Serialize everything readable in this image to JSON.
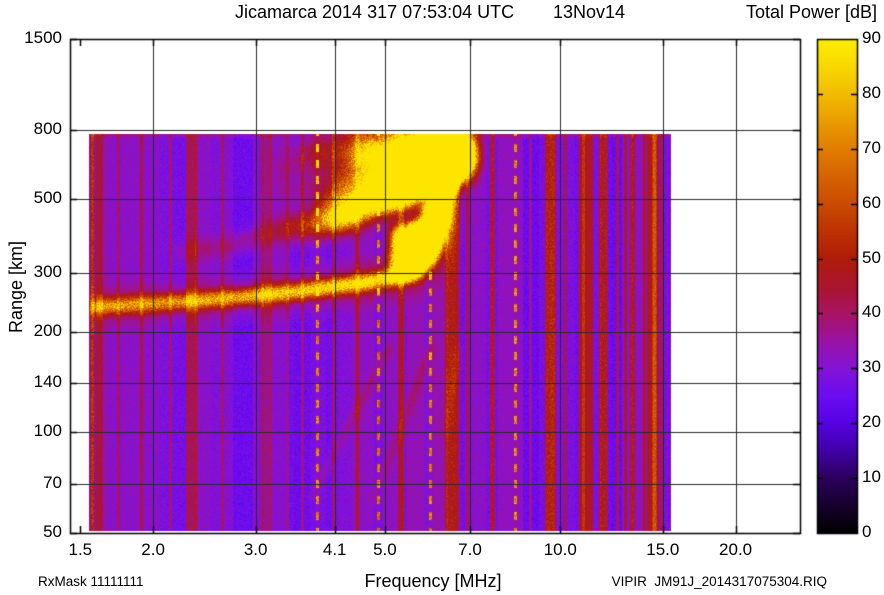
{
  "header": {
    "title": "Jicamarca 2014 317 07:53:04 UTC",
    "date": "13Nov14"
  },
  "footer": {
    "left": "RxMask 11111111",
    "center": "Frequency [MHz]",
    "right": "VIPIR  JM91J_2014317075304.RIQ"
  },
  "chart_data": {
    "type": "heatmap",
    "title": "Jicamarca 2014 317 07:53:04 UTC  13Nov14",
    "xlabel": "Frequency [MHz]",
    "ylabel": "Range [km]",
    "x_scale": "log",
    "y_scale": "log",
    "xlim": [
      1.44,
      25.8
    ],
    "ylim": [
      50,
      1500
    ],
    "x_ticks": [
      1.5,
      2.0,
      3.0,
      4.1,
      5.0,
      7.0,
      10.0,
      15.0,
      20.0
    ],
    "x_tick_labels": [
      "1.5",
      "2.0",
      "3.0",
      "4.1",
      "5.0",
      "7.0",
      "10.0",
      "15.0",
      "20.0"
    ],
    "x_grid": [
      2.0,
      3.0,
      4.1,
      5.0,
      7.0,
      10.0,
      15.0,
      20.0
    ],
    "y_ticks": [
      1500,
      800,
      500,
      300,
      200,
      140,
      100,
      70,
      50
    ],
    "y_tick_labels": [
      "1500",
      "800",
      "500",
      "300",
      "200",
      "140",
      "100",
      "70",
      "50"
    ],
    "y_grid": [
      800,
      500,
      300,
      200,
      140,
      100,
      70
    ],
    "grid": true,
    "grid_color": "#2a2a2a",
    "colorbar": {
      "title": "Total Power [dB]",
      "min": 0,
      "max": 90,
      "ticks": [
        0,
        10,
        20,
        30,
        40,
        50,
        60,
        70,
        80,
        90
      ],
      "tick_labels": [
        "0",
        "10",
        "20",
        "30",
        "40",
        "50",
        "60",
        "70",
        "80",
        "90"
      ],
      "position": "right",
      "palette": [
        {
          "v": 0,
          "c": "#000000"
        },
        {
          "v": 5,
          "c": "#16002e"
        },
        {
          "v": 10,
          "c": "#2c005c"
        },
        {
          "v": 15,
          "c": "#4100a6"
        },
        {
          "v": 20,
          "c": "#5503e2"
        },
        {
          "v": 25,
          "c": "#6c0cf2"
        },
        {
          "v": 30,
          "c": "#8413d6"
        },
        {
          "v": 35,
          "c": "#9a12a6"
        },
        {
          "v": 40,
          "c": "#a81463"
        },
        {
          "v": 45,
          "c": "#a9162e"
        },
        {
          "v": 50,
          "c": "#b11c0a"
        },
        {
          "v": 55,
          "c": "#bd3202"
        },
        {
          "v": 60,
          "c": "#ca4b00"
        },
        {
          "v": 65,
          "c": "#d66300"
        },
        {
          "v": 70,
          "c": "#e27d00"
        },
        {
          "v": 75,
          "c": "#ea9c00"
        },
        {
          "v": 80,
          "c": "#f2bc00"
        },
        {
          "v": 85,
          "c": "#f9d800"
        },
        {
          "v": 90,
          "c": "#ffee00"
        }
      ]
    },
    "data_extent": {
      "f": [
        1.555,
        15.5
      ],
      "km": [
        50.8,
        779
      ]
    },
    "background_db": {
      "base": 28,
      "variation": 7
    },
    "main_trace": {
      "comment": "F-layer echo trace, [freq MHz, virtual range km, boost dB]",
      "points": [
        [
          1.56,
          238,
          32
        ],
        [
          1.8,
          241,
          33
        ],
        [
          2.1,
          245,
          34
        ],
        [
          2.5,
          250,
          36
        ],
        [
          3.0,
          257,
          40
        ],
        [
          3.5,
          264,
          43
        ],
        [
          4.1,
          274,
          45
        ],
        [
          4.6,
          281,
          46
        ],
        [
          5.0,
          289,
          46
        ],
        [
          5.3,
          295,
          46
        ],
        [
          5.63,
          301,
          45
        ],
        [
          5.86,
          322,
          44
        ],
        [
          6.02,
          347,
          42
        ],
        [
          6.17,
          385,
          40
        ],
        [
          6.29,
          442,
          38
        ],
        [
          6.39,
          507,
          36
        ],
        [
          6.47,
          582,
          34
        ],
        [
          6.5,
          654,
          33
        ],
        [
          6.52,
          713,
          32
        ]
      ],
      "critical_frequency_mhz": 6.5
    },
    "second_hop_trace": {
      "comment": "diffuse upper echo band, [freq MHz, range km, boost dB]",
      "points": [
        [
          2.2,
          345,
          6
        ],
        [
          2.7,
          362,
          8
        ],
        [
          3.0,
          385,
          9
        ],
        [
          3.6,
          420,
          10
        ],
        [
          4.2,
          462,
          11
        ],
        [
          4.9,
          523,
          12
        ],
        [
          5.75,
          600,
          12
        ],
        [
          6.45,
          672,
          11
        ],
        [
          6.75,
          707,
          10
        ]
      ]
    },
    "spread_cloud": {
      "comment": "diffuse spread-F scatter between traces",
      "f_range": [
        3.1,
        6.75
      ],
      "km_range_top": 760,
      "n_splats": 1600,
      "boost_range": [
        1,
        4.2
      ]
    },
    "cusp_highlight": {
      "f_range": [
        5.2,
        6.5
      ],
      "boost_range": [
        2,
        6
      ]
    },
    "streaks": [
      {
        "from": [
          5.1,
          182
        ],
        "to": [
          3.72,
          63
        ],
        "boost": 7
      },
      {
        "from": [
          6.02,
          182
        ],
        "to": [
          4.74,
          61
        ],
        "boost": 7
      },
      {
        "from": [
          6.67,
          176
        ],
        "to": [
          6.3,
          95
        ],
        "boost": 6
      }
    ],
    "rfi_stripes": [
      {
        "f": 1.57,
        "w": 4,
        "b": 26
      },
      {
        "f": 1.74,
        "w": 2,
        "b": 9
      },
      {
        "f": 1.91,
        "w": 2,
        "b": 8
      },
      {
        "f": 2.14,
        "w": 2,
        "b": 10
      },
      {
        "f": 2.37,
        "w": 2,
        "b": 8
      },
      {
        "f": 2.63,
        "w": 2,
        "b": 10
      },
      {
        "f": 3.08,
        "w": 2,
        "b": 11
      },
      {
        "f": 3.4,
        "w": 2,
        "b": 9
      },
      {
        "f": 3.6,
        "w": 2,
        "b": 11
      },
      {
        "f": 3.82,
        "w": 2,
        "b": 42,
        "dash": true
      },
      {
        "f": 4.07,
        "w": 2,
        "b": 11
      },
      {
        "f": 4.47,
        "w": 3,
        "b": 12
      },
      {
        "f": 4.86,
        "w": 2,
        "b": 38,
        "dash": true
      },
      {
        "f": 5.33,
        "w": 6,
        "b": 14
      },
      {
        "f": 5.98,
        "w": 2,
        "b": 40,
        "dash": true
      },
      {
        "f": 6.52,
        "w": 14,
        "b": 18
      },
      {
        "f": 6.93,
        "w": 2,
        "b": 11
      },
      {
        "f": 7.63,
        "w": 3,
        "b": 20
      },
      {
        "f": 8.36,
        "w": 2,
        "b": 40,
        "dash": true
      },
      {
        "f": 8.89,
        "w": 2,
        "b": 10
      },
      {
        "f": 9.6,
        "w": 9,
        "b": 22
      },
      {
        "f": 10.2,
        "w": 2,
        "b": 12
      },
      {
        "f": 10.95,
        "w": 2,
        "b": 9
      },
      {
        "f": 11.85,
        "w": 7,
        "b": 22
      },
      {
        "f": 12.5,
        "w": 2,
        "b": 16
      },
      {
        "f": 12.9,
        "w": 2,
        "b": 14
      },
      {
        "f": 13.3,
        "w": 3,
        "b": 18
      },
      {
        "f": 13.9,
        "w": 2,
        "b": 12
      },
      {
        "f": 14.5,
        "w": 3,
        "b": 16
      },
      {
        "f": 14.9,
        "w": 2,
        "b": 12
      }
    ]
  }
}
